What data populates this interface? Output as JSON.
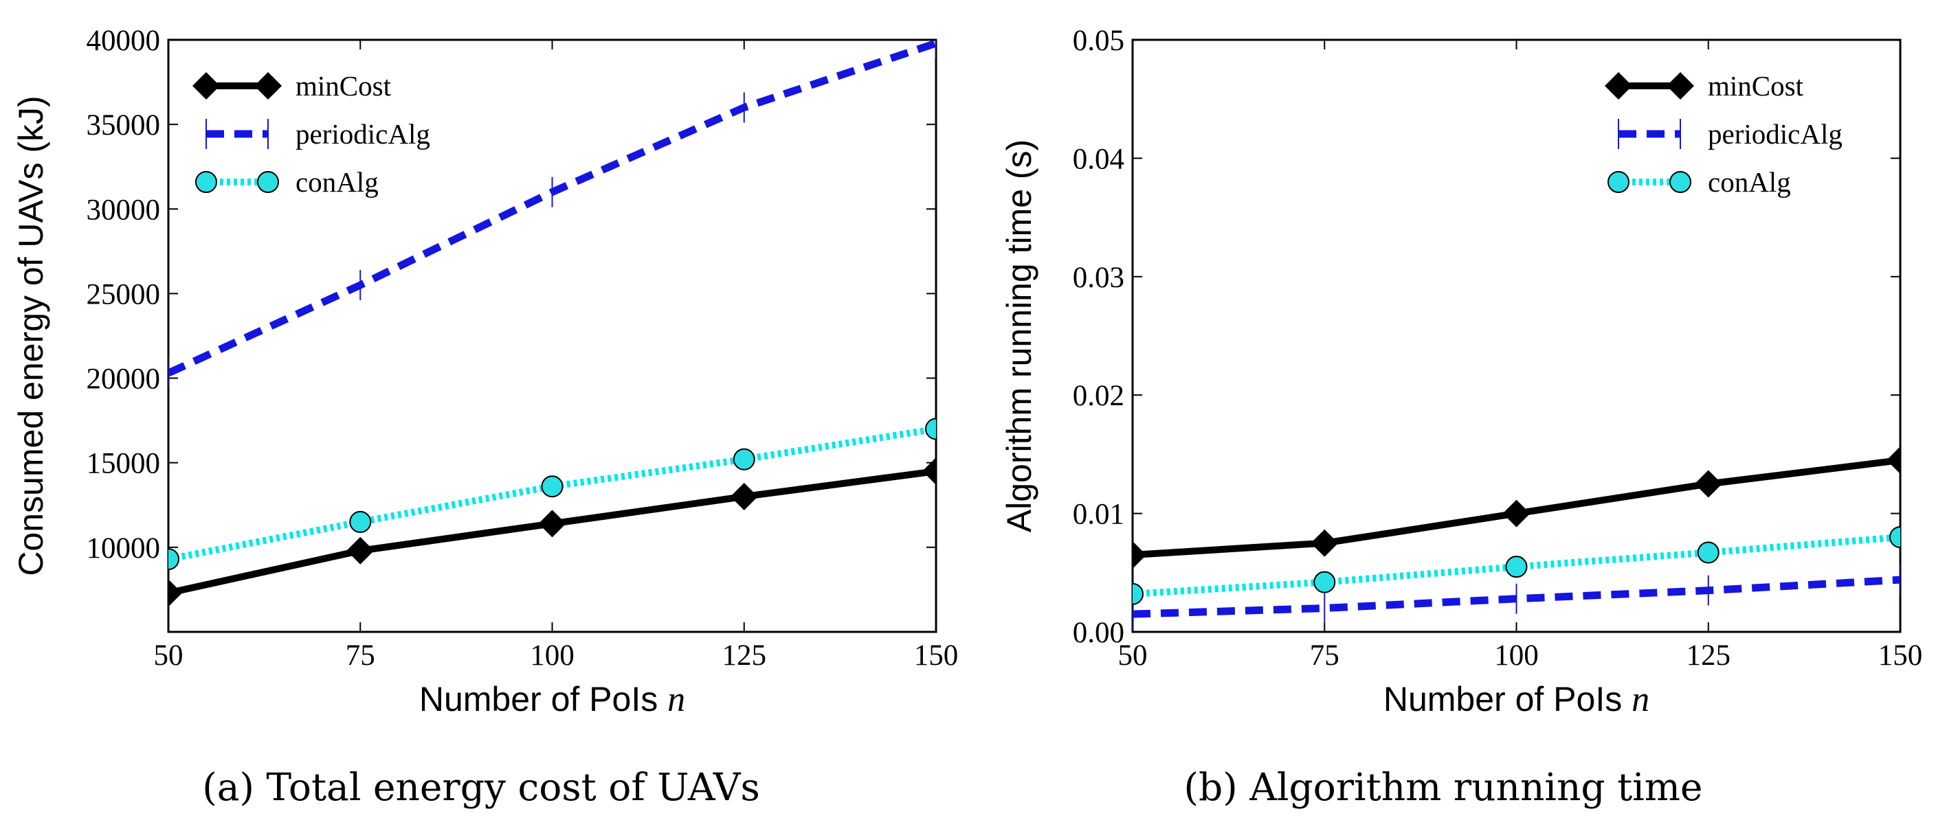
{
  "figure": {
    "left_caption": "(a)  Total energy cost of UAVs",
    "right_caption": "(b)  Algorithm running time"
  },
  "colors": {
    "minCost": "#000000",
    "periodicAlg": "#1515e0",
    "conAlg": "#00e8e8",
    "conAlg_marker": "#2ae0e4"
  },
  "chart_data": [
    {
      "type": "line",
      "title": "(a)  Total energy cost of UAVs",
      "xlabel_text": "Number of PoIs",
      "xlabel_var": "n",
      "ylabel": "Consumed energy of UAVs (kJ)",
      "x": [
        50,
        75,
        100,
        125,
        150
      ],
      "xlim": [
        50,
        150
      ],
      "ylim": [
        5000,
        40000
      ],
      "xticks": [
        "50",
        "75",
        "100",
        "125",
        "150"
      ],
      "yticks": [
        "10000",
        "15000",
        "20000",
        "25000",
        "30000",
        "35000",
        "40000"
      ],
      "ytick_values": [
        10000,
        15000,
        20000,
        25000,
        30000,
        35000,
        40000
      ],
      "legend_position": "top-left",
      "grid": false,
      "series": [
        {
          "name": "minCost",
          "values": [
            7300,
            9800,
            11400,
            13000,
            14500
          ]
        },
        {
          "name": "periodicAlg",
          "values": [
            20300,
            25500,
            31000,
            36000,
            39800
          ]
        },
        {
          "name": "conAlg",
          "values": [
            9300,
            11500,
            13600,
            15200,
            17000
          ]
        }
      ]
    },
    {
      "type": "line",
      "title": "(b)  Algorithm running time",
      "xlabel_text": "Number of PoIs",
      "xlabel_var": "n",
      "ylabel": "Algorithm running time (s)",
      "x": [
        50,
        75,
        100,
        125,
        150
      ],
      "xlim": [
        50,
        150
      ],
      "ylim": [
        0,
        0.05
      ],
      "xticks": [
        "50",
        "75",
        "100",
        "125",
        "150"
      ],
      "yticks": [
        "0.00",
        "0.01",
        "0.02",
        "0.03",
        "0.04",
        "0.05"
      ],
      "ytick_values": [
        0,
        0.01,
        0.02,
        0.03,
        0.04,
        0.05
      ],
      "legend_position": "top-right",
      "grid": false,
      "series": [
        {
          "name": "minCost",
          "values": [
            0.0065,
            0.0075,
            0.01,
            0.0125,
            0.0145
          ]
        },
        {
          "name": "periodicAlg",
          "values": [
            0.0015,
            0.002,
            0.0028,
            0.0035,
            0.0044
          ]
        },
        {
          "name": "conAlg",
          "values": [
            0.0032,
            0.0042,
            0.0055,
            0.0067,
            0.008
          ]
        }
      ]
    }
  ]
}
